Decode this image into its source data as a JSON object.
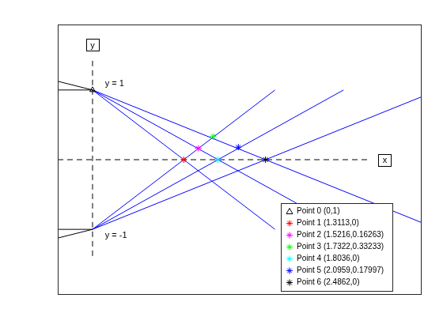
{
  "chart_data": {
    "type": "scatter",
    "xlim": [
      -0.5,
      4.73
    ],
    "ylim": [
      -1.94,
      1.94
    ],
    "tick_labels": false,
    "grid": false,
    "legend": "lower right",
    "lines": [
      {
        "color": "#000000",
        "line_style": "dashed",
        "x": [
          -0.5,
          4.0
        ],
        "values": [
          0,
          0
        ]
      },
      {
        "color": "#000000",
        "line_style": "dashed",
        "x": [
          0,
          0
        ],
        "values": [
          1.42,
          -1.4
        ]
      },
      {
        "color": "#000000",
        "line_style": "solid",
        "x": [
          -0.5,
          0
        ],
        "values": [
          1,
          1
        ]
      },
      {
        "color": "#000000",
        "line_style": "solid",
        "x": [
          -0.5,
          0
        ],
        "values": [
          1.125,
          1
        ]
      },
      {
        "color": "#000000",
        "line_style": "solid",
        "x": [
          -0.5,
          0
        ],
        "values": [
          -1,
          -1
        ]
      },
      {
        "color": "#000000",
        "line_style": "solid",
        "x": [
          -0.5,
          0
        ],
        "values": [
          -1.125,
          -1
        ]
      },
      {
        "color": "#0000ff",
        "line_style": "solid",
        "x": [
          0,
          2.6226
        ],
        "values": [
          1,
          -1
        ]
      },
      {
        "color": "#0000ff",
        "line_style": "solid",
        "x": [
          0,
          3.6072
        ],
        "values": [
          1,
          -1
        ]
      },
      {
        "color": "#0000ff",
        "line_style": "solid",
        "x": [
          0,
          4.9724
        ],
        "values": [
          1,
          -1
        ]
      },
      {
        "color": "#0000ff",
        "line_style": "solid",
        "x": [
          0,
          2.6226
        ],
        "values": [
          -1,
          1
        ]
      },
      {
        "color": "#0000ff",
        "line_style": "solid",
        "x": [
          0,
          3.6072
        ],
        "values": [
          -1,
          1
        ]
      },
      {
        "color": "#0000ff",
        "line_style": "solid",
        "x": [
          0,
          4.9724
        ],
        "values": [
          -1,
          1
        ]
      }
    ],
    "series": [
      {
        "name": "Point 0 (0,1)",
        "color": "#000000",
        "marker": "triangle",
        "x": [
          0
        ],
        "values": [
          1
        ]
      },
      {
        "name": "Point 1 (1.3113,0)",
        "color": "#ff0000",
        "marker": "star",
        "x": [
          1.3113
        ],
        "values": [
          0
        ]
      },
      {
        "name": "Point 2 (1.5216,0.16263)",
        "color": "#ff00ff",
        "marker": "star",
        "x": [
          1.5216
        ],
        "values": [
          0.16263
        ]
      },
      {
        "name": "Point 3 (1.7322,0.33233)",
        "color": "#00ff00",
        "marker": "star",
        "x": [
          1.7322
        ],
        "values": [
          0.33233
        ]
      },
      {
        "name": "Point 4 (1.8036,0)",
        "color": "#00ffff",
        "marker": "star",
        "x": [
          1.8036
        ],
        "values": [
          0
        ]
      },
      {
        "name": "Point 5 (2.0959,0.17997)",
        "color": "#0000ff",
        "marker": "star",
        "x": [
          2.0959
        ],
        "values": [
          0.17997
        ]
      },
      {
        "name": "Point 6 (2.4862,0)",
        "color": "#000000",
        "marker": "star",
        "x": [
          2.4862
        ],
        "values": [
          0
        ]
      }
    ],
    "annotations": [
      {
        "text": "y = 1",
        "x": 0.18,
        "y": 1.09
      },
      {
        "text": "y = -1",
        "x": 0.18,
        "y": -1.09
      }
    ],
    "axis_labels": [
      {
        "text": "y",
        "x": 0,
        "y": 1.65
      },
      {
        "text": "x",
        "x": 4.2,
        "y": 0
      }
    ]
  }
}
